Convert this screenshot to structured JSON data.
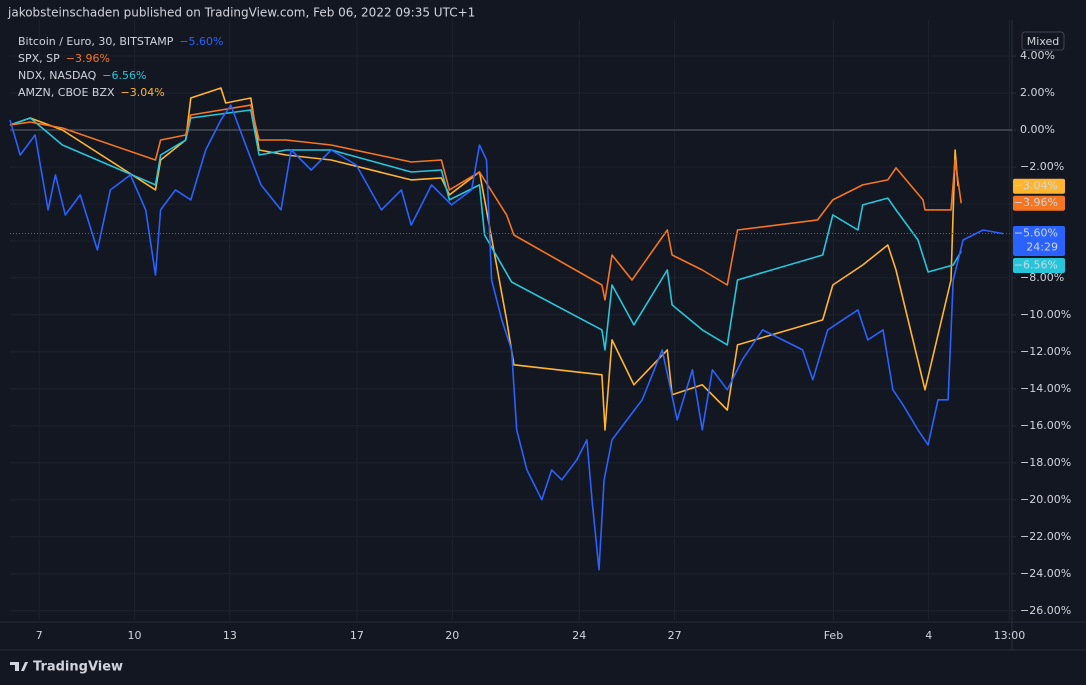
{
  "header": "jakobsteinschaden published on TradingView.com, Feb 06, 2022 09:35 UTC+1",
  "footer": "TradingView",
  "scale_button": "Mixed",
  "countdown": "24:29",
  "chart_data": {
    "type": "line",
    "xlim": [
      6.08,
      37.62
    ],
    "xticks": [
      7,
      10,
      13,
      17,
      20,
      24,
      27,
      {
        "value": 32,
        "label": "Feb"
      },
      {
        "value": 35,
        "label": "4"
      },
      {
        "value": 37.54,
        "label": "13:00"
      }
    ],
    "ylim": [
      -26.5,
      5.95
    ],
    "yticks": [
      {
        "value": 4,
        "label": "4.00%"
      },
      {
        "value": 2,
        "label": "2.00%"
      },
      {
        "value": 0,
        "label": "0.00%"
      },
      {
        "value": -2,
        "label": "−2.00%"
      },
      {
        "value": -4,
        "label": "−4.00%"
      },
      {
        "value": -6,
        "label": "−6.00%"
      },
      {
        "value": -8,
        "label": "−8.00%"
      },
      {
        "value": -10,
        "label": "−10.00%"
      },
      {
        "value": -12,
        "label": "−12.00%"
      },
      {
        "value": -14,
        "label": "−14.00%"
      },
      {
        "value": -16,
        "label": "−16.00%"
      },
      {
        "value": -18,
        "label": "−18.00%"
      },
      {
        "value": -20,
        "label": "−20.00%"
      },
      {
        "value": -22,
        "label": "−22.00%"
      },
      {
        "value": -24,
        "label": "−24.00%"
      },
      {
        "value": -26,
        "label": "−26.00%"
      }
    ],
    "series": [
      {
        "name": "Bitcoin / Euro, 30, BITSTAMP",
        "legend_value": "−5.60%",
        "color": "#2962ff",
        "x": [
          6.08,
          6.4,
          6.87,
          7.28,
          7.51,
          7.82,
          8.29,
          8.83,
          9.24,
          9.87,
          10.35,
          10.66,
          10.82,
          11.29,
          11.77,
          12.24,
          12.72,
          13.03,
          13.5,
          13.98,
          14.61,
          14.93,
          15.56,
          16.19,
          16.98,
          17.77,
          18.4,
          18.71,
          19.35,
          19.98,
          20.61,
          20.86,
          21.08,
          21.24,
          21.56,
          21.87,
          22.03,
          22.35,
          22.82,
          23.13,
          23.45,
          23.92,
          24.24,
          24.4,
          24.62,
          24.78,
          25.03,
          25.5,
          25.98,
          26.61,
          27.08,
          27.56,
          27.87,
          28.19,
          28.66,
          29.13,
          29.77,
          30.4,
          31.03,
          31.35,
          31.82,
          32.29,
          32.77,
          33.08,
          33.56,
          33.87,
          34.19,
          34.66,
          34.98,
          35.29,
          35.61,
          35.77,
          36.08,
          36.71,
          37.34
        ],
        "values": [
          0.54,
          -1.35,
          -0.27,
          -4.32,
          -2.43,
          -4.59,
          -3.51,
          -6.49,
          -3.24,
          -2.43,
          -4.32,
          -7.84,
          -4.32,
          -3.24,
          -3.78,
          -1.08,
          0.54,
          1.35,
          -0.81,
          -2.97,
          -4.32,
          -1.08,
          -2.16,
          -1.08,
          -1.89,
          -4.32,
          -3.24,
          -5.14,
          -2.97,
          -4.05,
          -3.24,
          -0.81,
          -1.62,
          -8.11,
          -10.27,
          -11.89,
          -16.22,
          -18.38,
          -20,
          -18.38,
          -18.92,
          -17.84,
          -16.76,
          -20,
          -23.78,
          -18.92,
          -16.76,
          -15.68,
          -14.59,
          -11.89,
          -15.68,
          -12.97,
          -16.22,
          -12.97,
          -14.05,
          -12.43,
          -10.81,
          -11.35,
          -11.89,
          -13.51,
          -10.81,
          -10.27,
          -9.73,
          -11.35,
          -10.81,
          -14.05,
          -14.86,
          -16.22,
          -17.03,
          -14.59,
          -14.59,
          -8.11,
          -5.95,
          -5.41,
          -5.6
        ]
      },
      {
        "name": "SPX, SP",
        "legend_value": "−3.96%",
        "color": "#f57520",
        "x": [
          6.08,
          6.72,
          7.73,
          10.66,
          10.82,
          11.61,
          11.77,
          13.66,
          13.92,
          14.77,
          16.19,
          18.71,
          19.66,
          19.91,
          20.86,
          21.71,
          21.94,
          24.71,
          24.81,
          25.03,
          25.66,
          26.77,
          26.92,
          27.87,
          28.66,
          28.98,
          31.5,
          31.98,
          32.92,
          33.71,
          33.97,
          34.82,
          34.88,
          35.7,
          35.83,
          36.02
        ],
        "values": [
          0.27,
          0.43,
          0.11,
          -1.62,
          -0.54,
          -0.27,
          0.81,
          1.35,
          -0.54,
          -0.54,
          -0.81,
          -1.73,
          -1.62,
          -3.24,
          -2.27,
          -4.59,
          -5.68,
          -8.38,
          -9.19,
          -6.76,
          -8.11,
          -5.41,
          -6.76,
          -7.57,
          -8.38,
          -5.41,
          -4.86,
          -3.78,
          -2.97,
          -2.7,
          -2.05,
          -3.78,
          -4.32,
          -4.32,
          -1.62,
          -3.96
        ]
      },
      {
        "name": "NDX, NASDAQ",
        "legend_value": "−6.56%",
        "color": "#26c6da",
        "x": [
          6.08,
          6.72,
          7.73,
          10.66,
          10.82,
          11.61,
          11.77,
          13.66,
          13.92,
          14.77,
          16.19,
          18.71,
          19.66,
          19.91,
          20.86,
          21.02,
          21.87,
          24.71,
          24.81,
          25.03,
          25.72,
          26.77,
          26.92,
          27.87,
          28.66,
          28.98,
          31.66,
          31.98,
          32.77,
          32.92,
          33.71,
          33.97,
          34.66,
          34.98,
          35.77,
          36.02
        ],
        "values": [
          0.27,
          0.65,
          -0.81,
          -2.97,
          -1.35,
          -0.54,
          0.65,
          1.08,
          -1.35,
          -1.08,
          -1.08,
          -2.27,
          -2.16,
          -3.78,
          -2.97,
          -5.68,
          -8.22,
          -10.81,
          -11.89,
          -8.38,
          -10.54,
          -7.57,
          -9.46,
          -10.81,
          -11.62,
          -8.11,
          -6.76,
          -4.59,
          -5.41,
          -4.05,
          -3.68,
          -4.32,
          -5.95,
          -7.68,
          -7.3,
          -6.56
        ]
      },
      {
        "name": "AMZN, CBOE BZX",
        "legend_value": "−3.04%",
        "color": "#ffb52e",
        "x": [
          6.08,
          6.72,
          7.73,
          10.66,
          10.82,
          11.61,
          11.77,
          12.72,
          12.87,
          13.66,
          13.92,
          14.77,
          16.19,
          18.71,
          19.66,
          19.91,
          20.86,
          21.71,
          21.94,
          24.71,
          24.81,
          25.03,
          25.72,
          26.77,
          26.92,
          27.87,
          28.66,
          28.98,
          31.66,
          31.98,
          32.92,
          33.71,
          33.97,
          34.88,
          35.7,
          35.83,
          35.92
        ],
        "values": [
          0.27,
          0.65,
          0,
          -3.24,
          -1.62,
          -0.54,
          1.73,
          2.27,
          1.46,
          1.73,
          -1.08,
          -1.35,
          -1.62,
          -2.7,
          -2.59,
          -3.51,
          -2.27,
          -10.27,
          -12.7,
          -13.24,
          -16.22,
          -11.35,
          -13.78,
          -11.89,
          -14.32,
          -13.78,
          -15.14,
          -11.62,
          -10.27,
          -8.38,
          -7.3,
          -6.22,
          -7.57,
          -14.05,
          -8.11,
          -1.08,
          -3.04
        ]
      }
    ]
  }
}
